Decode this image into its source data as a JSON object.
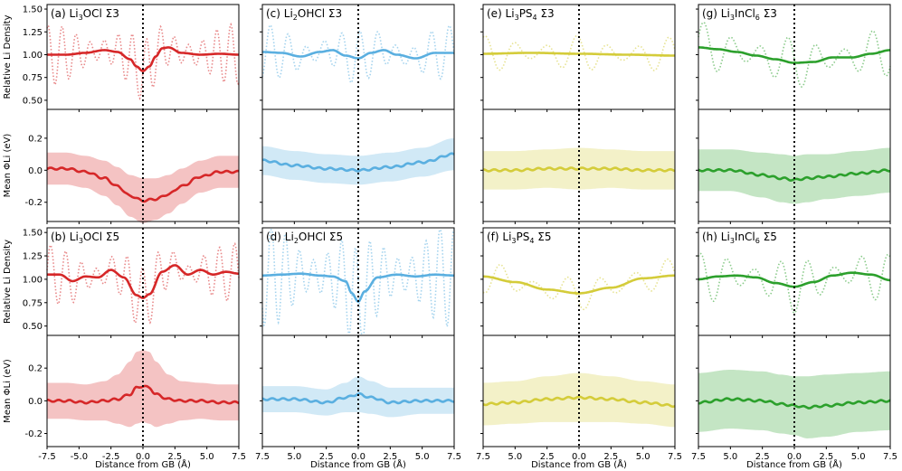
{
  "figure": {
    "y_label_density": "Relative Li Density",
    "y_label_phi": "Mean ΦLi (eV)",
    "x_label": "Distance from GB (Å)",
    "x_ticks": [
      "-7.5",
      "-5.0",
      "-2.5",
      "0.0",
      "2.5",
      "5.0",
      "7.5"
    ],
    "x_ticks_reversed": [
      "7.5",
      "5.0",
      "2.5",
      "0.0",
      "2.5",
      "5.0",
      "7.5"
    ],
    "density_ticks": [
      "1.50",
      "1.25",
      "1.00",
      "0.75",
      "0.50"
    ],
    "phi_ticks": [
      "0.2",
      "0.0",
      "-0.2"
    ]
  },
  "chart_data": [
    {
      "panel": "a",
      "type": "line",
      "title": "(a) Li3OCl Σ3",
      "color": "#d62728",
      "xlabel": "",
      "ylabel": "Relative Li Density",
      "xlim": [
        -7.5,
        7.5
      ],
      "ylim": [
        0.4,
        1.55
      ],
      "series": [
        {
          "style": "dotted",
          "amplitude": 0.33,
          "period": 1.1
        },
        {
          "style": "solid",
          "x": [
            -7.5,
            -6,
            -4.5,
            -3,
            -2,
            -1,
            -0.5,
            0,
            0.5,
            1,
            1.5,
            2,
            3,
            4.5,
            6,
            7.5
          ],
          "y": [
            1.0,
            1.0,
            1.02,
            1.05,
            1.03,
            0.95,
            0.87,
            0.82,
            0.87,
            0.98,
            1.07,
            1.08,
            1.02,
            1.0,
            1.01,
            1.0
          ]
        }
      ]
    },
    {
      "panel": "c",
      "type": "line",
      "title": "(c) Li2OHCl Σ3",
      "color": "#5aafe0",
      "xlabel": "",
      "ylabel": "",
      "xlim": [
        -7.5,
        7.5
      ],
      "ylim": [
        0.4,
        1.55
      ],
      "series": [
        {
          "style": "dotted",
          "amplitude": 0.3,
          "period": 1.4
        },
        {
          "style": "solid",
          "x": [
            -7.5,
            -6,
            -4.5,
            -3,
            -2,
            -1,
            0,
            1,
            2,
            3,
            4.5,
            6,
            7.5
          ],
          "y": [
            1.03,
            1.02,
            0.98,
            1.03,
            1.05,
            0.99,
            0.96,
            1.02,
            1.05,
            1.0,
            0.96,
            1.02,
            1.02
          ]
        }
      ]
    },
    {
      "panel": "e",
      "type": "line",
      "title": "(e) Li3PS4 Σ3",
      "color": "#d4cc3a",
      "xlabel": "",
      "ylabel": "",
      "xlim": [
        -7.5,
        7.5
      ],
      "ylim": [
        0.4,
        1.55
      ],
      "series": [
        {
          "style": "dotted",
          "amplitude": 0.2,
          "period": 2.4
        },
        {
          "style": "solid",
          "x": [
            -7.5,
            -3.75,
            0,
            3.75,
            7.5
          ],
          "y": [
            1.01,
            1.02,
            1.01,
            1.0,
            0.99
          ]
        }
      ]
    },
    {
      "panel": "g",
      "type": "line",
      "title": "(g) Li3InCl6 Σ3",
      "color": "#2ca02c",
      "xlabel": "",
      "ylabel": "",
      "xlim": [
        -7.5,
        7.5
      ],
      "ylim": [
        0.4,
        1.55
      ],
      "series": [
        {
          "style": "dotted",
          "amplitude": 0.28,
          "period": 2.2
        },
        {
          "style": "solid",
          "x": [
            -7.5,
            -6,
            -4.5,
            -3,
            -1.5,
            0,
            1.5,
            3,
            4.5,
            6,
            7.5
          ],
          "y": [
            1.08,
            1.06,
            1.03,
            0.99,
            0.95,
            0.91,
            0.92,
            0.97,
            0.97,
            1.01,
            1.05
          ]
        }
      ]
    },
    {
      "panel": "a-phi",
      "type": "line",
      "title": "",
      "color": "#d62728",
      "xlabel": "",
      "ylabel": "Mean ΦLi (eV)",
      "xlim": [
        -7.5,
        7.5
      ],
      "ylim": [
        -0.32,
        0.38
      ],
      "series": [
        {
          "style": "solid",
          "x": [
            -7.5,
            -6,
            -4.5,
            -3,
            -2,
            -1,
            0,
            1,
            2,
            3,
            4.5,
            6,
            7.5
          ],
          "y": [
            0.01,
            0.01,
            -0.01,
            -0.05,
            -0.1,
            -0.16,
            -0.19,
            -0.18,
            -0.15,
            -0.1,
            -0.04,
            -0.01,
            -0.01
          ],
          "band": [
            0.1,
            0.1,
            0.1,
            0.11,
            0.12,
            0.13,
            0.14,
            0.13,
            0.12,
            0.11,
            0.1,
            0.1,
            0.1
          ]
        }
      ]
    },
    {
      "panel": "c-phi",
      "type": "line",
      "title": "",
      "color": "#5aafe0",
      "xlabel": "",
      "ylabel": "",
      "xlim": [
        -7.5,
        7.5
      ],
      "ylim": [
        -0.32,
        0.38
      ],
      "series": [
        {
          "style": "solid",
          "x": [
            -7.5,
            -5,
            -2.5,
            0,
            2.5,
            5,
            7.5
          ],
          "y": [
            0.06,
            0.03,
            0.01,
            0.0,
            0.02,
            0.05,
            0.1
          ],
          "band": [
            0.09,
            0.09,
            0.09,
            0.09,
            0.09,
            0.09,
            0.1
          ]
        }
      ]
    },
    {
      "panel": "e-phi",
      "type": "line",
      "title": "",
      "color": "#d4cc3a",
      "xlabel": "",
      "ylabel": "",
      "xlim": [
        -7.5,
        7.5
      ],
      "ylim": [
        -0.32,
        0.38
      ],
      "series": [
        {
          "style": "solid",
          "x": [
            -7.5,
            -5,
            -2.5,
            0,
            2.5,
            5,
            7.5
          ],
          "y": [
            0.0,
            0.0,
            0.01,
            0.01,
            0.01,
            0.0,
            0.0
          ],
          "band": [
            0.12,
            0.12,
            0.12,
            0.13,
            0.12,
            0.12,
            0.12
          ]
        }
      ]
    },
    {
      "panel": "g-phi",
      "type": "line",
      "title": "",
      "color": "#2ca02c",
      "xlabel": "",
      "ylabel": "",
      "xlim": [
        -7.5,
        7.5
      ],
      "ylim": [
        -0.32,
        0.38
      ],
      "series": [
        {
          "style": "solid",
          "x": [
            -7.5,
            -5,
            -2.5,
            -1,
            0,
            1,
            2.5,
            5,
            7.5
          ],
          "y": [
            0.0,
            0.0,
            -0.03,
            -0.05,
            -0.06,
            -0.05,
            -0.04,
            -0.02,
            0.0
          ],
          "band": [
            0.13,
            0.13,
            0.14,
            0.15,
            0.15,
            0.15,
            0.14,
            0.14,
            0.14
          ]
        }
      ]
    },
    {
      "panel": "b",
      "type": "line",
      "title": "(b) Li3OCl Σ5",
      "color": "#d62728",
      "xlabel": "",
      "ylabel": "Relative Li Density",
      "xlim": [
        -7.5,
        7.5
      ],
      "ylim": [
        0.4,
        1.55
      ],
      "series": [
        {
          "style": "dotted",
          "amplitude": 0.32,
          "period": 1.2
        },
        {
          "style": "solid",
          "x": [
            -7.5,
            -6.5,
            -5.5,
            -4.5,
            -3.5,
            -2.5,
            -1.5,
            -0.5,
            0,
            0.5,
            1.5,
            2.5,
            3.5,
            4.5,
            5.5,
            6.5,
            7.5
          ],
          "y": [
            1.05,
            1.05,
            0.98,
            1.03,
            1.02,
            1.1,
            1.02,
            0.83,
            0.8,
            0.84,
            1.08,
            1.15,
            1.05,
            1.1,
            1.05,
            1.08,
            1.06
          ]
        }
      ]
    },
    {
      "panel": "d",
      "type": "line",
      "title": "(d) Li2OHCl Σ5",
      "color": "#5aafe0",
      "xlabel": "",
      "ylabel": "",
      "xlim": [
        -7.5,
        7.5
      ],
      "ylim": [
        0.4,
        1.55
      ],
      "series": [
        {
          "style": "dotted",
          "amplitude": 0.55,
          "period": 1.1
        },
        {
          "style": "solid",
          "x": [
            -7.5,
            -6,
            -4.5,
            -3,
            -2,
            -1,
            -0.5,
            0,
            0.5,
            1.5,
            3,
            4.5,
            6,
            7.5
          ],
          "y": [
            1.04,
            1.05,
            1.06,
            1.04,
            1.03,
            0.98,
            0.85,
            0.76,
            0.87,
            1.02,
            1.05,
            1.03,
            1.05,
            1.04
          ]
        }
      ]
    },
    {
      "panel": "f",
      "type": "line",
      "title": "(f) Li3PS4 Σ5",
      "color": "#d4cc3a",
      "xlabel": "",
      "ylabel": "",
      "xlim": [
        -7.5,
        7.5
      ],
      "ylim": [
        0.4,
        1.55
      ],
      "series": [
        {
          "style": "dotted",
          "amplitude": 0.18,
          "period": 2.6
        },
        {
          "style": "solid",
          "x": [
            -7.5,
            -5,
            -2.5,
            0,
            2.5,
            5,
            7.5
          ],
          "y": [
            1.03,
            0.97,
            0.89,
            0.85,
            0.91,
            1.01,
            1.04
          ]
        }
      ]
    },
    {
      "panel": "h",
      "type": "line",
      "title": "(h) Li3InCl6 Σ5",
      "color": "#2ca02c",
      "xlabel": "",
      "ylabel": "",
      "xlim": [
        -7.5,
        7.5
      ],
      "ylim": [
        0.4,
        1.55
      ],
      "series": [
        {
          "style": "dotted",
          "amplitude": 0.28,
          "period": 2.1
        },
        {
          "style": "solid",
          "x": [
            -7.5,
            -6,
            -4.5,
            -3,
            -1.5,
            0,
            1.5,
            3,
            4.5,
            6,
            7.5
          ],
          "y": [
            1.0,
            1.03,
            1.04,
            1.02,
            0.96,
            0.92,
            0.97,
            1.04,
            1.07,
            1.05,
            0.99
          ]
        }
      ]
    },
    {
      "panel": "b-phi",
      "type": "line",
      "title": "",
      "color": "#d62728",
      "xlabel": "Distance from GB (Å)",
      "ylabel": "Mean ΦLi (eV)",
      "xlim": [
        -7.5,
        7.5
      ],
      "ylim": [
        -0.28,
        0.4
      ],
      "series": [
        {
          "style": "solid",
          "x": [
            -7.5,
            -6,
            -4.5,
            -3,
            -2,
            -1,
            -0.5,
            0,
            0.5,
            1,
            2,
            3,
            4.5,
            6,
            7.5
          ],
          "y": [
            0.0,
            0.0,
            -0.01,
            0.0,
            0.01,
            0.04,
            0.08,
            0.09,
            0.08,
            0.04,
            0.01,
            0.0,
            0.0,
            -0.01,
            -0.01
          ],
          "band": [
            0.11,
            0.11,
            0.11,
            0.12,
            0.15,
            0.2,
            0.22,
            0.22,
            0.22,
            0.2,
            0.15,
            0.12,
            0.11,
            0.11,
            0.11
          ]
        }
      ]
    },
    {
      "panel": "d-phi",
      "type": "line",
      "title": "",
      "color": "#5aafe0",
      "xlabel": "Distance from GB (Å)",
      "ylabel": "",
      "xlim": [
        -7.5,
        7.5
      ],
      "ylim": [
        -0.28,
        0.4
      ],
      "series": [
        {
          "style": "solid",
          "x": [
            -7.5,
            -5,
            -2.5,
            -1,
            0,
            1,
            2.5,
            5,
            7.5
          ],
          "y": [
            0.01,
            0.01,
            -0.01,
            0.02,
            0.04,
            0.02,
            -0.01,
            0.0,
            0.0
          ],
          "band": [
            0.08,
            0.08,
            0.08,
            0.09,
            0.11,
            0.1,
            0.09,
            0.08,
            0.08
          ]
        }
      ]
    },
    {
      "panel": "f-phi",
      "type": "line",
      "title": "",
      "color": "#d4cc3a",
      "xlabel": "Distance from GB (Å)",
      "ylabel": "",
      "xlim": [
        -7.5,
        7.5
      ],
      "ylim": [
        -0.28,
        0.4
      ],
      "series": [
        {
          "style": "solid",
          "x": [
            -7.5,
            -5,
            -2.5,
            0,
            2.5,
            5,
            7.5
          ],
          "y": [
            -0.02,
            -0.01,
            0.01,
            0.02,
            0.01,
            -0.01,
            -0.03
          ],
          "band": [
            0.13,
            0.13,
            0.14,
            0.15,
            0.14,
            0.13,
            0.13
          ]
        }
      ]
    },
    {
      "panel": "h-phi",
      "type": "line",
      "title": "",
      "color": "#2ca02c",
      "xlabel": "Distance from GB (Å)",
      "ylabel": "",
      "xlim": [
        -7.5,
        7.5
      ],
      "ylim": [
        -0.28,
        0.4
      ],
      "series": [
        {
          "style": "solid",
          "x": [
            -7.5,
            -5,
            -2.5,
            -1,
            0,
            1,
            2.5,
            5,
            7.5
          ],
          "y": [
            -0.01,
            0.01,
            0.0,
            -0.02,
            -0.03,
            -0.04,
            -0.03,
            -0.01,
            0.0
          ],
          "band": [
            0.18,
            0.18,
            0.18,
            0.18,
            0.18,
            0.19,
            0.19,
            0.18,
            0.18
          ]
        }
      ]
    }
  ]
}
